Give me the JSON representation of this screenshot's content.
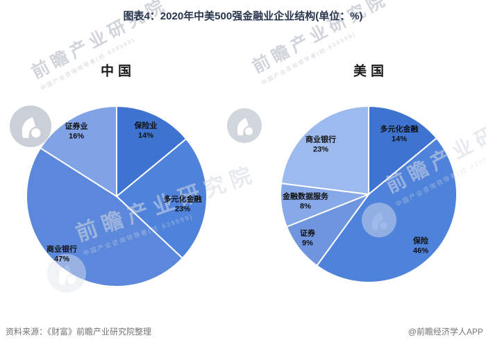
{
  "page": {
    "title": "图表4：2020年中美500强金融业企业结构(单位：%)"
  },
  "chart_data": [
    {
      "type": "pie",
      "title": "中国",
      "unit": "%",
      "start_angle_deg": 0,
      "direction": "clockwise",
      "slices": [
        {
          "key": "insurance",
          "label": "保险业",
          "value": 14,
          "value_label": "14%",
          "color": "#3e73d0"
        },
        {
          "key": "diversified-finance",
          "label": "多元化金融",
          "value": 23,
          "value_label": "23%",
          "color": "#4f82da"
        },
        {
          "key": "commercial-bank",
          "label": "商业银行",
          "value": 47,
          "value_label": "47%",
          "color": "#5b88da"
        },
        {
          "key": "securities",
          "label": "证券业",
          "value": 16,
          "value_label": "16%",
          "color": "#7fa3e5"
        }
      ]
    },
    {
      "type": "pie",
      "title": "美国",
      "unit": "%",
      "start_angle_deg": 0,
      "direction": "clockwise",
      "slices": [
        {
          "key": "diversified-finance",
          "label": "多元化金融",
          "value": 14,
          "value_label": "14%",
          "color": "#3e73d0"
        },
        {
          "key": "insurance",
          "label": "保险",
          "value": 46,
          "value_label": "46%",
          "color": "#4f82da"
        },
        {
          "key": "securities",
          "label": "证券",
          "value": 9,
          "value_label": "9%",
          "color": "#6f95de"
        },
        {
          "key": "financial-data-services",
          "label": "金融数据服务",
          "value": 8,
          "value_label": "8%",
          "color": "#88a9e8"
        },
        {
          "key": "commercial-bank",
          "label": "商业银行",
          "value": 23,
          "value_label": "23%",
          "color": "#9cbaee"
        }
      ]
    }
  ],
  "footer": {
    "source": "资料来源：《财富》前瞻产业研究院整理",
    "credit": "@前瞻经济学人APP"
  },
  "watermark": {
    "brand_text": "前瞻产业研究院",
    "sub_text": "中国产业咨询领导者(经·839599)"
  }
}
